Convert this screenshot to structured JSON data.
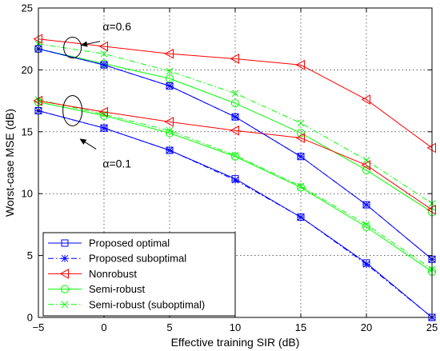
{
  "chart_data": {
    "type": "line",
    "xlabel": "Effective training SIR (dB)",
    "ylabel": "Worst-case MSE (dB)",
    "xlim": [
      -5,
      25
    ],
    "ylim": [
      0,
      25
    ],
    "xticks": [
      -5,
      0,
      5,
      10,
      15,
      20,
      25
    ],
    "yticks": [
      0,
      5,
      10,
      15,
      20,
      25
    ],
    "grid": true,
    "legend_position": "bottom-left",
    "x": [
      -5,
      0,
      5,
      10,
      15,
      20,
      25
    ],
    "annotations": [
      {
        "text": "α=0.6"
      },
      {
        "text": "α=0.1"
      }
    ],
    "series": [
      {
        "name": "Proposed optimal",
        "color": "#0000ff",
        "dash": "solid",
        "marker": "square",
        "groups": [
          [
            21.7,
            20.4,
            18.7,
            16.2,
            13.0,
            9.1,
            4.7
          ],
          [
            16.7,
            15.3,
            13.5,
            11.2,
            8.1,
            4.4,
            0.0
          ]
        ]
      },
      {
        "name": "Proposed suboptimal",
        "color": "#0000ff",
        "dash": "dashdot",
        "marker": "star",
        "groups": [
          [
            21.7,
            20.4,
            18.7,
            16.2,
            13.0,
            9.1,
            4.7
          ],
          [
            16.7,
            15.3,
            13.5,
            11.1,
            8.1,
            4.3,
            0.0
          ]
        ]
      },
      {
        "name": "Nonrobust",
        "color": "#ff0000",
        "dash": "solid",
        "marker": "triangle-left",
        "groups": [
          [
            22.5,
            21.9,
            21.3,
            20.9,
            20.4,
            17.6,
            13.7
          ],
          [
            17.5,
            16.6,
            15.8,
            15.1,
            14.5,
            12.3,
            8.7
          ]
        ]
      },
      {
        "name": "Semi-robust",
        "color": "#00ff00",
        "dash": "solid",
        "marker": "circle",
        "groups": [
          [
            21.7,
            20.5,
            19.3,
            17.3,
            14.9,
            11.9,
            8.5
          ],
          [
            17.4,
            16.3,
            14.9,
            13.0,
            10.5,
            7.3,
            3.7
          ]
        ]
      },
      {
        "name": "Semi-robust (suboptimal)",
        "color": "#00ff00",
        "dash": "dashdot",
        "marker": "x",
        "groups": [
          [
            22.1,
            21.3,
            19.9,
            18.1,
            15.7,
            12.7,
            9.2
          ],
          [
            17.6,
            16.4,
            15.1,
            13.1,
            10.6,
            7.5,
            3.9
          ]
        ]
      }
    ]
  }
}
